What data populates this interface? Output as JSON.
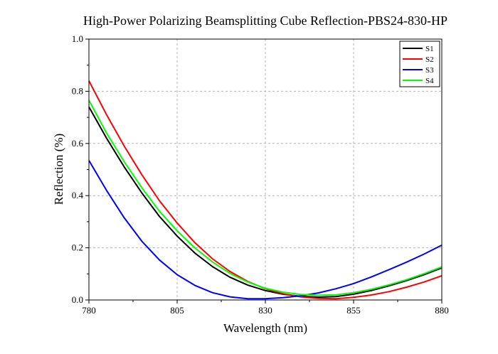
{
  "chart_data": {
    "type": "line",
    "title": "High-Power Polarizing Beamsplitting Cube Reflection-PBS24-830-HP",
    "xlabel": "Wavelength (nm)",
    "ylabel": "Reflection (%)",
    "xlim": [
      780,
      880
    ],
    "ylim": [
      0.0,
      1.0
    ],
    "xticks": [
      "780",
      "805",
      "830",
      "855",
      "880"
    ],
    "yticks": [
      "0.0",
      "0.2",
      "0.4",
      "0.6",
      "0.8",
      "1.0"
    ],
    "grid": true,
    "legend_position": "top-right",
    "x": [
      780,
      785,
      790,
      795,
      800,
      805,
      810,
      815,
      820,
      825,
      830,
      835,
      840,
      845,
      850,
      855,
      860,
      865,
      870,
      875,
      880
    ],
    "series": [
      {
        "name": "S1",
        "color": "#000000",
        "values": [
          0.74,
          0.62,
          0.51,
          0.41,
          0.32,
          0.245,
          0.18,
          0.128,
          0.087,
          0.057,
          0.036,
          0.022,
          0.014,
          0.011,
          0.013,
          0.022,
          0.036,
          0.054,
          0.074,
          0.097,
          0.123
        ]
      },
      {
        "name": "S2",
        "color": "#ff0000",
        "values": [
          0.84,
          0.71,
          0.59,
          0.48,
          0.38,
          0.295,
          0.22,
          0.158,
          0.109,
          0.071,
          0.043,
          0.024,
          0.012,
          0.006,
          0.005,
          0.01,
          0.019,
          0.032,
          0.049,
          0.069,
          0.093
        ]
      },
      {
        "name": "S3",
        "color": "#0000ff",
        "values": [
          0.535,
          0.42,
          0.315,
          0.225,
          0.153,
          0.097,
          0.056,
          0.028,
          0.012,
          0.005,
          0.005,
          0.009,
          0.016,
          0.027,
          0.043,
          0.063,
          0.088,
          0.116,
          0.145,
          0.176,
          0.21
        ]
      },
      {
        "name": "S4",
        "color": "#00ff00",
        "values": [
          0.765,
          0.64,
          0.53,
          0.43,
          0.34,
          0.265,
          0.2,
          0.146,
          0.102,
          0.069,
          0.045,
          0.03,
          0.021,
          0.018,
          0.02,
          0.028,
          0.041,
          0.058,
          0.078,
          0.101,
          0.127
        ]
      }
    ]
  }
}
